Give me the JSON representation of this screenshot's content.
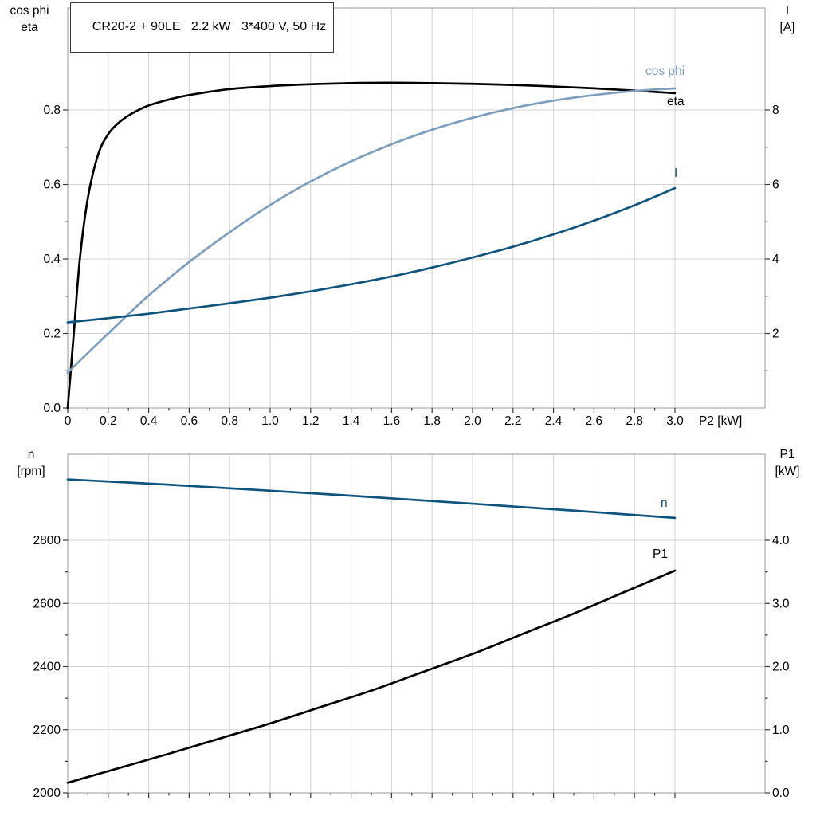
{
  "title_box": {
    "text": "CR20-2 + 90LE   2.2 kW   3*400 V, 50 Hz"
  },
  "colors": {
    "black": "#000000",
    "light_blue": "#7d9ebe",
    "dark_blue": "#0f537f",
    "grid": "#d2d2d2",
    "frame": "#9a9a9a",
    "tick": "#3a3a3a",
    "text": "#000000"
  },
  "chart_data": [
    {
      "type": "line",
      "title": "CR20-2 + 90LE   2.2 kW   3*400 V, 50 Hz",
      "x_axis": {
        "label": "P2 [kW]",
        "min": 0,
        "max": 3.445,
        "tick_values": [
          0,
          0.2,
          0.4,
          0.6,
          0.8,
          1.0,
          1.2,
          1.4,
          1.6,
          1.8,
          2.0,
          2.2,
          2.4,
          2.6,
          2.8,
          3.0
        ],
        "tick_labels": [
          "0",
          "0.2",
          "0.4",
          "0.6",
          "0.8",
          "1.0",
          "1.2",
          "1.4",
          "1.6",
          "1.8",
          "2.0",
          "2.2",
          "2.4",
          "2.6",
          "2.8",
          "3.0"
        ]
      },
      "left_axis": {
        "title_lines": [
          "cos phi",
          "eta"
        ],
        "min": 0,
        "max": 1.0738,
        "tick_values": [
          0,
          0.2,
          0.4,
          0.6,
          0.8
        ],
        "tick_labels": [
          "0.0",
          "0.2",
          "0.4",
          "0.6",
          "0.8"
        ]
      },
      "right_axis": {
        "title_lines": [
          "I",
          "[A]"
        ],
        "min": 0,
        "max": 10.738,
        "tick_values": [
          2,
          4,
          6,
          8
        ],
        "tick_labels": [
          "2",
          "4",
          "6",
          "8"
        ]
      },
      "series": [
        {
          "name": "eta",
          "label": "eta",
          "axis": "left",
          "color_key": "black",
          "x": [
            0,
            0.03,
            0.06,
            0.1,
            0.15,
            0.2,
            0.25,
            0.3,
            0.35,
            0.4,
            0.5,
            0.6,
            0.8,
            1.0,
            1.2,
            1.4,
            1.6,
            1.8,
            2.0,
            2.2,
            2.4,
            2.6,
            2.8,
            3.0
          ],
          "y": [
            0,
            0.2,
            0.4,
            0.565,
            0.68,
            0.735,
            0.765,
            0.785,
            0.8,
            0.812,
            0.828,
            0.84,
            0.856,
            0.864,
            0.869,
            0.872,
            0.873,
            0.872,
            0.87,
            0.867,
            0.863,
            0.858,
            0.852,
            0.845
          ]
        },
        {
          "name": "cos_phi",
          "label": "cos phi",
          "axis": "left",
          "color_key": "light_blue",
          "x": [
            0,
            0.1,
            0.2,
            0.3,
            0.4,
            0.5,
            0.6,
            0.8,
            1.0,
            1.2,
            1.4,
            1.6,
            1.8,
            2.0,
            2.2,
            2.4,
            2.6,
            2.8,
            3.0
          ],
          "y": [
            0.095,
            0.148,
            0.2,
            0.252,
            0.302,
            0.348,
            0.392,
            0.472,
            0.545,
            0.608,
            0.662,
            0.708,
            0.747,
            0.779,
            0.805,
            0.825,
            0.84,
            0.851,
            0.858
          ]
        },
        {
          "name": "current",
          "label": "I",
          "axis": "right",
          "color_key": "dark_blue",
          "x": [
            0,
            0.2,
            0.4,
            0.6,
            0.8,
            1.0,
            1.2,
            1.4,
            1.6,
            1.8,
            2.0,
            2.2,
            2.4,
            2.6,
            2.8,
            3.0
          ],
          "y": [
            2.3,
            2.41,
            2.53,
            2.67,
            2.81,
            2.96,
            3.13,
            3.32,
            3.53,
            3.77,
            4.04,
            4.33,
            4.66,
            5.03,
            5.44,
            5.9
          ]
        }
      ]
    },
    {
      "type": "line",
      "x_axis": {
        "label": "",
        "min": 0,
        "max": 3.445,
        "tick_values": [
          0,
          0.2,
          0.4,
          0.6,
          0.8,
          1.0,
          1.2,
          1.4,
          1.6,
          1.8,
          2.0,
          2.2,
          2.4,
          2.6,
          2.8,
          3.0
        ],
        "tick_labels": []
      },
      "left_axis": {
        "title_lines": [
          "n",
          "[rpm]"
        ],
        "min": 2000,
        "max": 3072.6,
        "tick_values": [
          2000,
          2200,
          2400,
          2600,
          2800
        ],
        "tick_labels": [
          "2000",
          "2200",
          "2400",
          "2600",
          "2800"
        ]
      },
      "right_axis": {
        "title_lines": [
          "P1",
          "[kW]"
        ],
        "min": 0,
        "max": 5.363,
        "tick_values": [
          0,
          1,
          2,
          3,
          4
        ],
        "tick_labels": [
          "0.0",
          "1.0",
          "2.0",
          "3.0",
          "4.0"
        ]
      },
      "series": [
        {
          "name": "n",
          "label": "n",
          "axis": "left",
          "color_key": "dark_blue",
          "x": [
            0,
            0.5,
            1.0,
            1.5,
            2.0,
            2.5,
            3.0
          ],
          "y": [
            2993,
            2976,
            2957,
            2937,
            2916,
            2894,
            2871
          ]
        },
        {
          "name": "P1",
          "label": "P1",
          "axis": "right",
          "color_key": "black",
          "x": [
            0,
            0.25,
            0.5,
            0.75,
            1.0,
            1.25,
            1.5,
            1.75,
            2.0,
            2.25,
            2.5,
            2.75,
            3.0
          ],
          "y": [
            0.16,
            0.39,
            0.62,
            0.86,
            1.1,
            1.36,
            1.62,
            1.91,
            2.2,
            2.52,
            2.84,
            3.18,
            3.52
          ]
        }
      ]
    }
  ]
}
